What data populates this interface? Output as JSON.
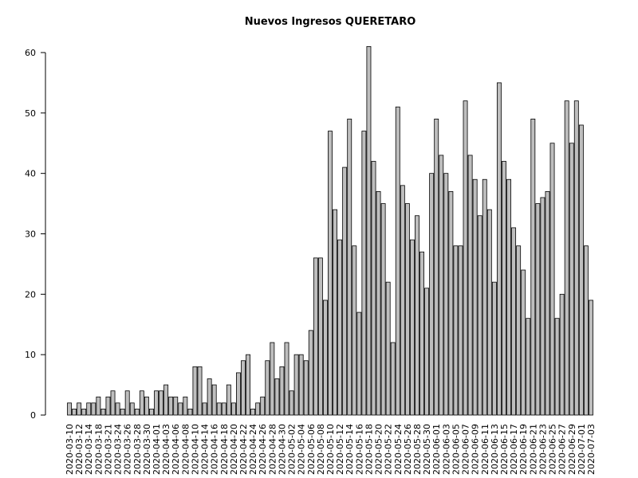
{
  "chart_data": {
    "type": "bar",
    "title": "Nuevos Ingresos QUERETARO",
    "categories": [
      "2020-03-10",
      null,
      "2020-03-12",
      null,
      "2020-03-14",
      null,
      "2020-03-18",
      null,
      "2020-03-21",
      null,
      "2020-03-24",
      null,
      "2020-03-26",
      null,
      "2020-03-28",
      null,
      "2020-03-30",
      null,
      "2020-04-01",
      null,
      "2020-04-03",
      null,
      "2020-04-06",
      null,
      "2020-04-08",
      null,
      "2020-04-10",
      null,
      "2020-04-14",
      null,
      "2020-04-16",
      null,
      "2020-04-18",
      null,
      "2020-04-20",
      null,
      "2020-04-22",
      null,
      "2020-04-24",
      null,
      "2020-04-26",
      null,
      "2020-04-28",
      null,
      "2020-04-30",
      null,
      "2020-05-02",
      null,
      "2020-05-04",
      null,
      "2020-05-06",
      null,
      "2020-05-08",
      null,
      "2020-05-10",
      null,
      "2020-05-12",
      null,
      "2020-05-14",
      null,
      "2020-05-16",
      null,
      "2020-05-18",
      null,
      "2020-05-20",
      null,
      "2020-05-22",
      null,
      "2020-05-24",
      null,
      "2020-05-26",
      null,
      "2020-05-28",
      null,
      "2020-05-30",
      null,
      "2020-06-01",
      null,
      "2020-06-03",
      null,
      "2020-06-05",
      null,
      "2020-06-07",
      null,
      "2020-06-09",
      null,
      "2020-06-11",
      null,
      "2020-06-13",
      null,
      "2020-06-15",
      null,
      "2020-06-17",
      null,
      "2020-06-19",
      null,
      "2020-06-21",
      null,
      "2020-06-23",
      null,
      "2020-06-25",
      null,
      "2020-06-27",
      null,
      "2020-06-29",
      null,
      "2020-07-01",
      null,
      "2020-07-03"
    ],
    "values": [
      2,
      1,
      2,
      1,
      2,
      2,
      3,
      1,
      3,
      4,
      2,
      1,
      4,
      2,
      1,
      4,
      3,
      1,
      4,
      4,
      5,
      3,
      3,
      2,
      3,
      1,
      8,
      8,
      2,
      6,
      5,
      2,
      2,
      5,
      2,
      7,
      9,
      10,
      1,
      2,
      3,
      9,
      12,
      6,
      8,
      12,
      4,
      10,
      10,
      9,
      14,
      26,
      26,
      19,
      47,
      34,
      29,
      41,
      49,
      28,
      17,
      47,
      61,
      42,
      37,
      35,
      22,
      12,
      51,
      38,
      35,
      29,
      33,
      27,
      21,
      40,
      49,
      43,
      40,
      37,
      28,
      28,
      52,
      43,
      39,
      33,
      39,
      34,
      22,
      55,
      42,
      39,
      31,
      28,
      24,
      16,
      49,
      35,
      36,
      37,
      45,
      16,
      20,
      52,
      45,
      52,
      48,
      28,
      19
    ],
    "color": "#bebebe",
    "ylim": [
      0,
      61
    ],
    "yticks": [
      0,
      10,
      20,
      30,
      40,
      50,
      60
    ]
  }
}
